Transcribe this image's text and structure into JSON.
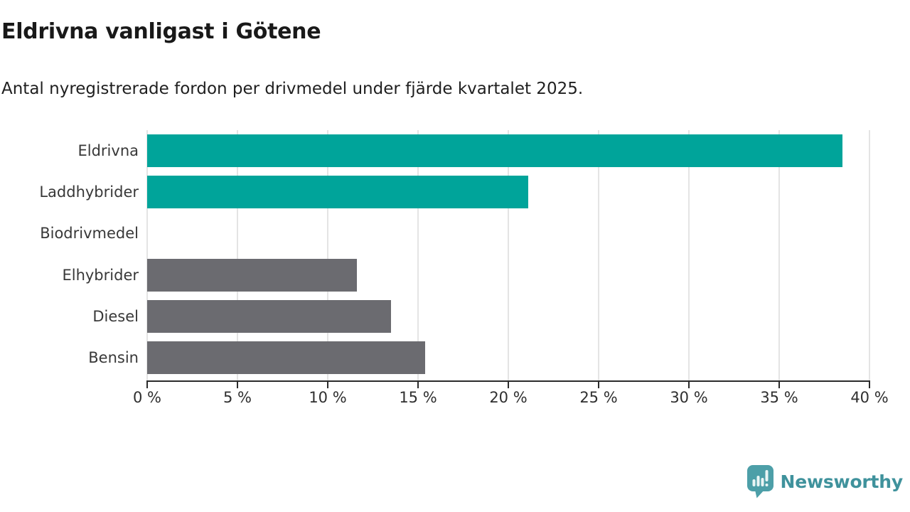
{
  "title": "Eldrivna vanligast i Götene",
  "subtitle": "Antal nyregistrerade fordon per drivmedel under fjärde kvartalet 2025.",
  "chart_data": {
    "type": "bar",
    "orientation": "horizontal",
    "title": "Eldrivna vanligast i Götene",
    "subtitle": "Antal nyregistrerade fordon per drivmedel under fjärde kvartalet 2025.",
    "categories": [
      "Eldrivna",
      "Laddhybrider",
      "Biodrivmedel",
      "Elhybrider",
      "Diesel",
      "Bensin"
    ],
    "values": [
      38.5,
      21.1,
      0,
      11.6,
      13.5,
      15.4
    ],
    "unit": "%",
    "xlim": [
      0,
      40
    ],
    "x_ticks": [
      0,
      5,
      10,
      15,
      20,
      25,
      30,
      35,
      40
    ],
    "x_tick_labels": [
      "0 %",
      "5 %",
      "10 %",
      "15 %",
      "20 %",
      "25 %",
      "30 %",
      "35 %",
      "40 %"
    ],
    "bar_colors": [
      "#00a49a",
      "#00a49a",
      "#6b6b70",
      "#6b6b70",
      "#6b6b70",
      "#6b6b70"
    ],
    "highlight_color": "#00a49a",
    "default_color": "#6b6b70",
    "grid": true,
    "gridline_color": "#e4e4e4",
    "axis_color": "#2b2b2b",
    "legend": "none"
  },
  "branding": {
    "logo_text": "Newsworthy",
    "logo_icon": "newsworthy-speech-bubble-barchart-icon",
    "icon_color": "#4d9fa8",
    "text_color": "#3f929c"
  }
}
